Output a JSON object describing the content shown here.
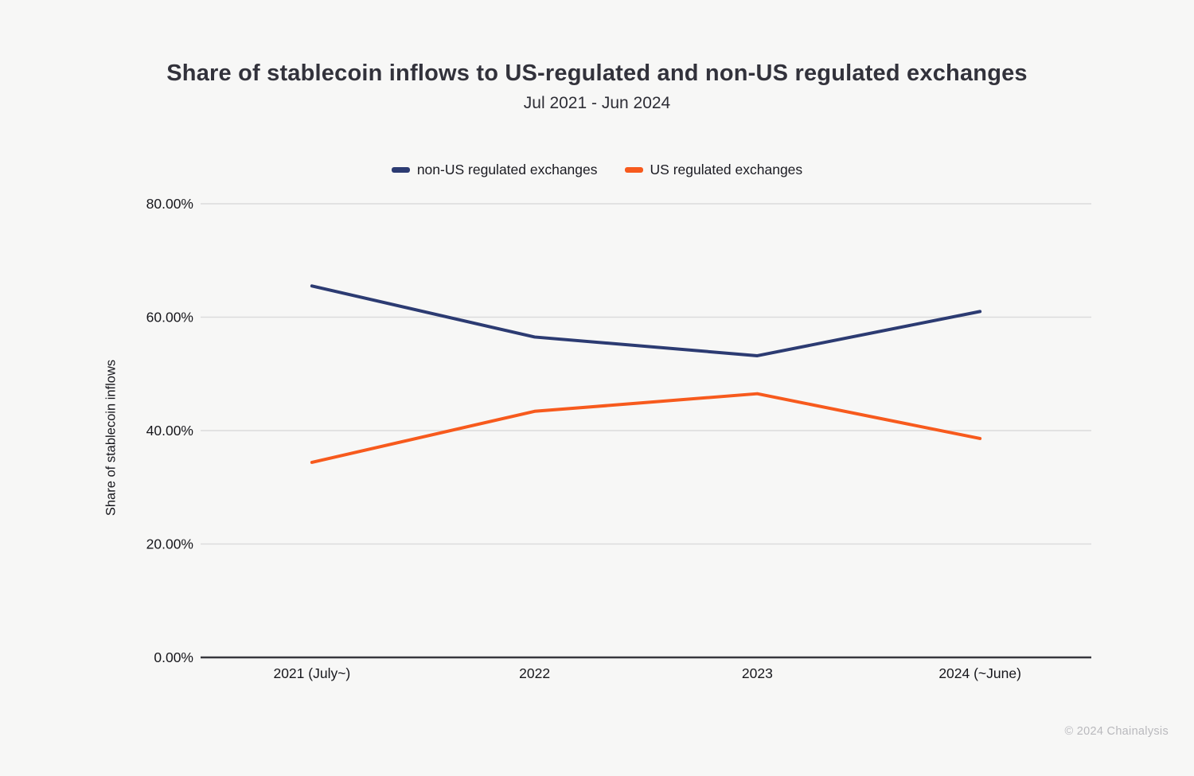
{
  "header": {
    "title": "Share of stablecoin inflows to US-regulated and non-US regulated exchanges",
    "subtitle": "Jul 2021 - Jun 2024"
  },
  "legend": {
    "items": [
      {
        "label": "non-US regulated exchanges",
        "color": "#2c3b72"
      },
      {
        "label": "US regulated exchanges",
        "color": "#f75a1d"
      }
    ]
  },
  "chart_data": {
    "type": "line",
    "title": "Share of stablecoin inflows to US-regulated and non-US regulated exchanges",
    "subtitle": "Jul 2021 - Jun 2024",
    "categories": [
      "2021 (July~)",
      "2022",
      "2023",
      "2024 (~June)"
    ],
    "series": [
      {
        "name": "non-US regulated exchanges",
        "color": "#2c3b72",
        "values": [
          65.5,
          56.5,
          53.2,
          61.0
        ]
      },
      {
        "name": "US regulated exchanges",
        "color": "#f75a1d",
        "values": [
          34.4,
          43.4,
          46.5,
          38.6
        ]
      }
    ],
    "xlabel": "",
    "ylabel": "Share of stablecoin inflows",
    "ylim": [
      0,
      80
    ],
    "ytick_values": [
      0,
      20,
      40,
      60,
      80
    ],
    "ytick_labels": [
      "0.00%",
      "20.00%",
      "40.00%",
      "60.00%",
      "80.00%"
    ],
    "grid": true,
    "legend_position": "top",
    "colors": {
      "background": "#f7f7f6",
      "gridline": "#dcdcdc",
      "axis_line": "#38383d",
      "tick_text": "#17171c"
    }
  },
  "footer": {
    "copyright": "© 2024 Chainalysis"
  }
}
